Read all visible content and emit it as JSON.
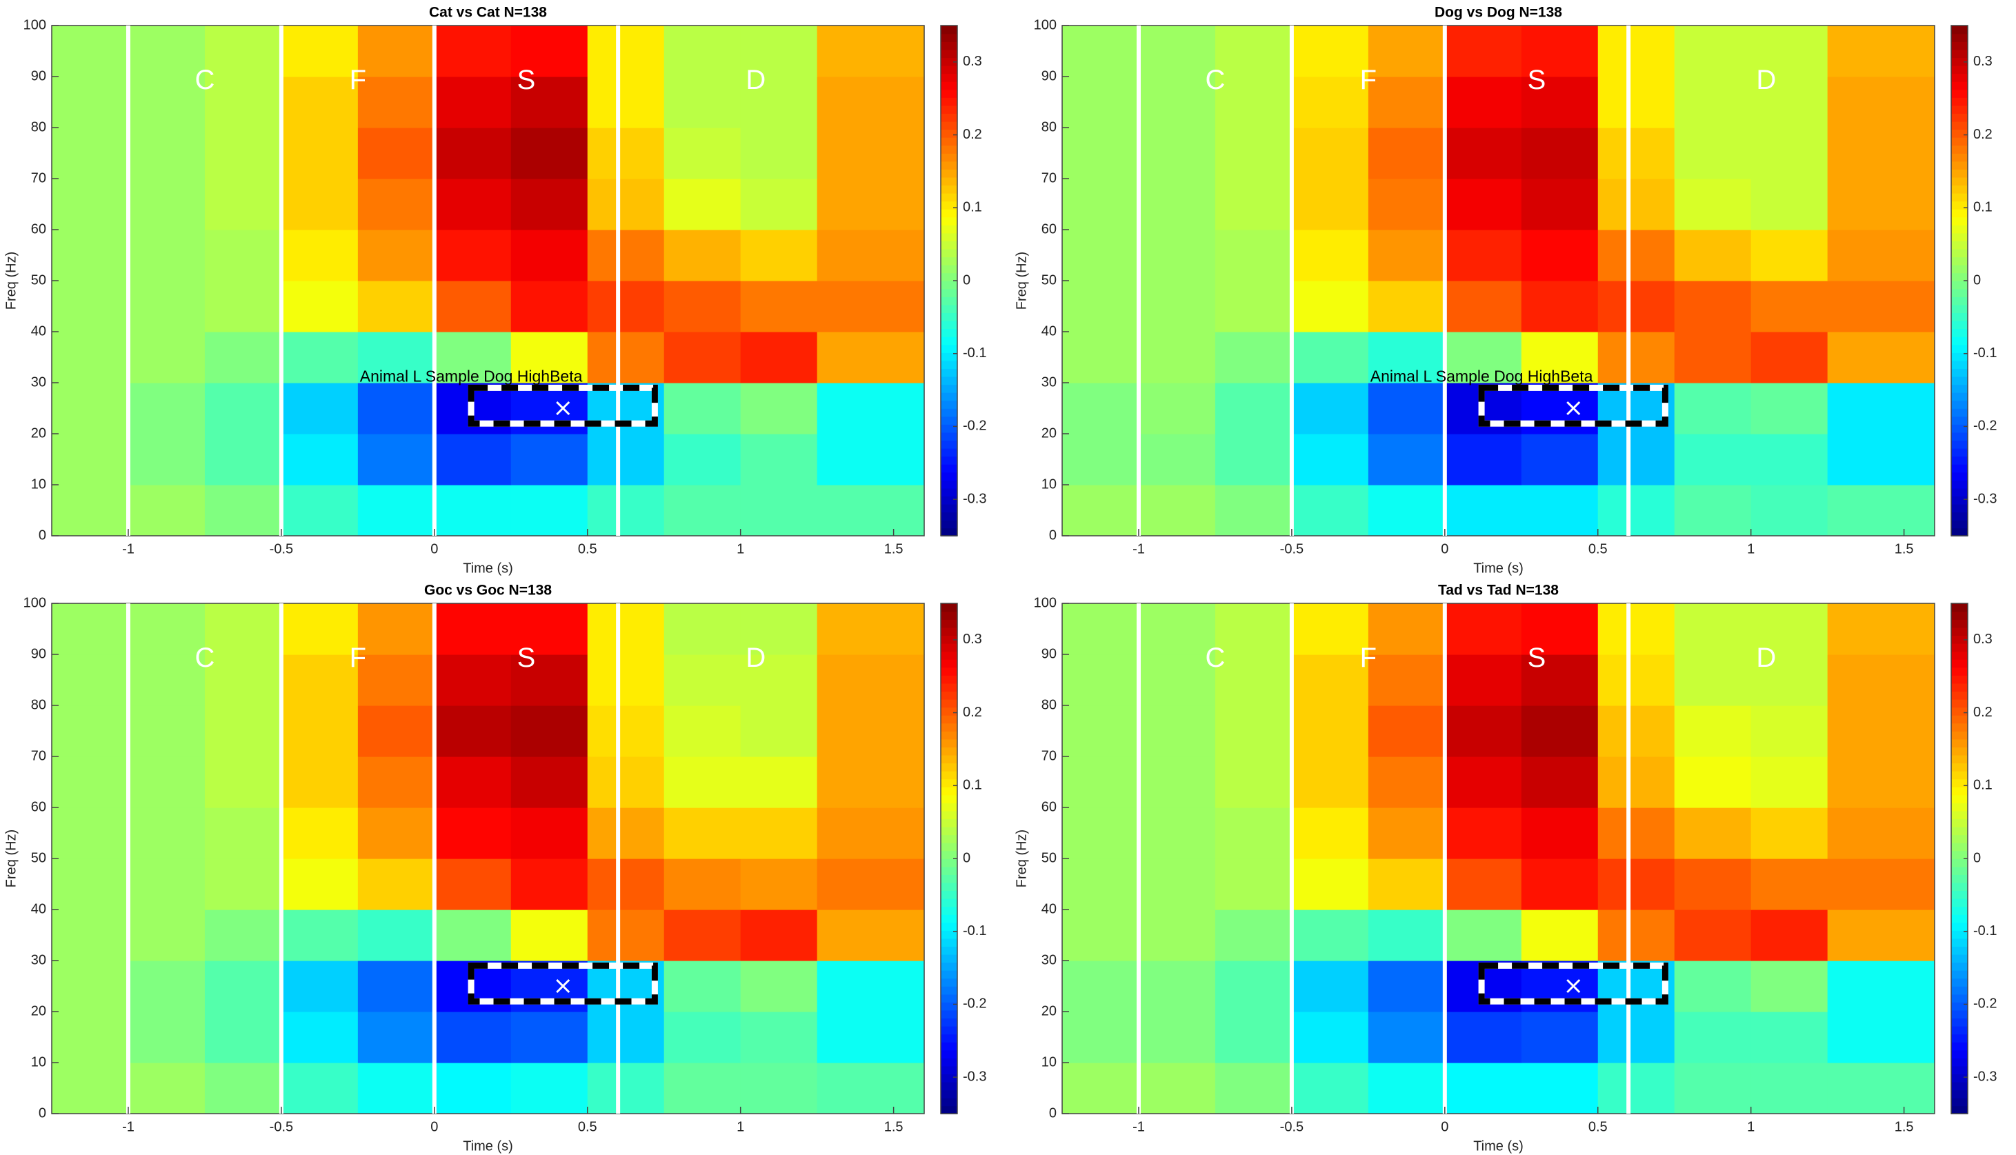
{
  "chart_data": [
    {
      "type": "heatmap",
      "title": "Cat vs Cat N=138",
      "xlabel": "Time (s)",
      "ylabel": "Freq (Hz)",
      "xlim": [
        -1.25,
        1.6
      ],
      "ylim": [
        0,
        100
      ],
      "xticks": [
        -1,
        -0.5,
        0,
        0.5,
        1,
        1.5
      ],
      "yticks": [
        0,
        10,
        20,
        30,
        40,
        50,
        60,
        70,
        80,
        90,
        100
      ],
      "colormap": "jet",
      "clim": [
        -0.35,
        0.35
      ],
      "cticks": [
        -0.3,
        -0.2,
        -0.1,
        0,
        0.1,
        0.2,
        0.3
      ],
      "x_edges": [
        -1.25,
        -1,
        -0.75,
        -0.5,
        -0.25,
        0,
        0.25,
        0.5,
        0.75,
        1,
        1.25,
        1.6
      ],
      "y_edges": [
        0,
        10,
        20,
        30,
        40,
        50,
        60,
        70,
        80,
        90,
        100
      ],
      "z": [
        [
          0.02,
          0.02,
          0,
          -0.05,
          -0.08,
          -0.08,
          -0.08,
          -0.05,
          -0.03,
          -0.03,
          -0.03
        ],
        [
          0.02,
          0,
          -0.03,
          -0.1,
          -0.18,
          -0.22,
          -0.2,
          -0.12,
          -0.05,
          -0.03,
          -0.08
        ],
        [
          0.02,
          0,
          -0.03,
          -0.12,
          -0.2,
          -0.27,
          -0.25,
          -0.12,
          -0.02,
          0,
          -0.08
        ],
        [
          0.02,
          0.02,
          0,
          -0.03,
          -0.05,
          0,
          0.08,
          0.18,
          0.22,
          0.24,
          0.15
        ],
        [
          0.02,
          0.02,
          0.03,
          0.08,
          0.12,
          0.2,
          0.25,
          0.22,
          0.2,
          0.18,
          0.18
        ],
        [
          0.02,
          0.02,
          0.03,
          0.1,
          0.16,
          0.25,
          0.27,
          0.18,
          0.14,
          0.12,
          0.16
        ],
        [
          0.02,
          0.02,
          0.04,
          0.12,
          0.18,
          0.28,
          0.3,
          0.13,
          0.07,
          0.05,
          0.15
        ],
        [
          0.02,
          0.02,
          0.04,
          0.12,
          0.2,
          0.3,
          0.32,
          0.12,
          0.05,
          0.04,
          0.15
        ],
        [
          0.02,
          0.02,
          0.04,
          0.12,
          0.18,
          0.28,
          0.3,
          0.1,
          0.04,
          0.04,
          0.15
        ],
        [
          0.02,
          0.02,
          0.04,
          0.1,
          0.16,
          0.25,
          0.26,
          0.1,
          0.04,
          0.04,
          0.14
        ]
      ],
      "vlines": [
        -1,
        -0.5,
        0,
        0.6
      ],
      "annotations": [
        {
          "text": "C",
          "x": -0.75,
          "y": 89
        },
        {
          "text": "F",
          "x": -0.25,
          "y": 89
        },
        {
          "text": "S",
          "x": 0.3,
          "y": 89
        },
        {
          "text": "D",
          "x": 1.05,
          "y": 89
        },
        {
          "text": "Animal L Sample Dog HighBeta",
          "x": 0.12,
          "y": 31
        }
      ],
      "box": {
        "x": [
          0.12,
          0.72
        ],
        "y": [
          22,
          29
        ]
      },
      "marker": {
        "x": 0.42,
        "y": 25
      }
    },
    {
      "type": "heatmap",
      "title": "Dog vs Dog N=138",
      "xlabel": "Time (s)",
      "ylabel": "Freq (Hz)",
      "xlim": [
        -1.25,
        1.6
      ],
      "ylim": [
        0,
        100
      ],
      "xticks": [
        -1,
        -0.5,
        0,
        0.5,
        1,
        1.5
      ],
      "yticks": [
        0,
        10,
        20,
        30,
        40,
        50,
        60,
        70,
        80,
        90,
        100
      ],
      "colormap": "jet",
      "clim": [
        -0.35,
        0.35
      ],
      "cticks": [
        -0.3,
        -0.2,
        -0.1,
        0,
        0.1,
        0.2,
        0.3
      ],
      "x_edges": [
        -1.25,
        -1,
        -0.75,
        -0.5,
        -0.25,
        0,
        0.25,
        0.5,
        0.75,
        1,
        1.25,
        1.6
      ],
      "y_edges": [
        0,
        10,
        20,
        30,
        40,
        50,
        60,
        70,
        80,
        90,
        100
      ],
      "z": [
        [
          0.02,
          0.02,
          0,
          -0.05,
          -0.08,
          -0.1,
          -0.1,
          -0.06,
          -0.03,
          -0.04,
          -0.03
        ],
        [
          0,
          0,
          -0.03,
          -0.1,
          -0.18,
          -0.24,
          -0.22,
          -0.13,
          -0.05,
          -0.05,
          -0.1
        ],
        [
          0,
          0.01,
          -0.03,
          -0.12,
          -0.2,
          -0.28,
          -0.26,
          -0.13,
          -0.03,
          -0.02,
          -0.1
        ],
        [
          0.02,
          0.02,
          0,
          -0.03,
          -0.06,
          0,
          0.08,
          0.17,
          0.2,
          0.22,
          0.15
        ],
        [
          0.02,
          0.02,
          0.03,
          0.08,
          0.12,
          0.2,
          0.24,
          0.22,
          0.2,
          0.18,
          0.18
        ],
        [
          0.02,
          0.02,
          0.03,
          0.1,
          0.16,
          0.24,
          0.26,
          0.18,
          0.13,
          0.11,
          0.16
        ],
        [
          0.02,
          0.02,
          0.04,
          0.12,
          0.18,
          0.27,
          0.29,
          0.13,
          0.06,
          0.05,
          0.15
        ],
        [
          0.02,
          0.02,
          0.04,
          0.12,
          0.19,
          0.29,
          0.3,
          0.12,
          0.05,
          0.05,
          0.15
        ],
        [
          0.02,
          0.02,
          0.04,
          0.11,
          0.17,
          0.27,
          0.28,
          0.1,
          0.05,
          0.05,
          0.15
        ],
        [
          0.02,
          0.02,
          0.04,
          0.1,
          0.15,
          0.24,
          0.25,
          0.1,
          0.05,
          0.05,
          0.14
        ]
      ],
      "vlines": [
        -1,
        -0.5,
        0,
        0.6
      ],
      "annotations": [
        {
          "text": "C",
          "x": -0.75,
          "y": 89
        },
        {
          "text": "F",
          "x": -0.25,
          "y": 89
        },
        {
          "text": "S",
          "x": 0.3,
          "y": 89
        },
        {
          "text": "D",
          "x": 1.05,
          "y": 89
        },
        {
          "text": "Animal L Sample Dog HighBeta",
          "x": 0.12,
          "y": 31
        }
      ],
      "box": {
        "x": [
          0.12,
          0.72
        ],
        "y": [
          22,
          29
        ]
      },
      "marker": {
        "x": 0.42,
        "y": 25
      }
    },
    {
      "type": "heatmap",
      "title": "Goc vs Goc N=138",
      "xlabel": "Time (s)",
      "ylabel": "Freq (Hz)",
      "xlim": [
        -1.25,
        1.6
      ],
      "ylim": [
        0,
        100
      ],
      "xticks": [
        -1,
        -0.5,
        0,
        0.5,
        1,
        1.5
      ],
      "yticks": [
        0,
        10,
        20,
        30,
        40,
        50,
        60,
        70,
        80,
        90,
        100
      ],
      "colormap": "jet",
      "clim": [
        -0.35,
        0.35
      ],
      "cticks": [
        -0.3,
        -0.2,
        -0.1,
        0,
        0.1,
        0.2,
        0.3
      ],
      "x_edges": [
        -1.25,
        -1,
        -0.75,
        -0.5,
        -0.25,
        0,
        0.25,
        0.5,
        0.75,
        1,
        1.25,
        1.6
      ],
      "y_edges": [
        0,
        10,
        20,
        30,
        40,
        50,
        60,
        70,
        80,
        90,
        100
      ],
      "z": [
        [
          0.02,
          0.02,
          0,
          -0.05,
          -0.08,
          -0.09,
          -0.08,
          -0.05,
          -0.02,
          -0.02,
          -0.03
        ],
        [
          0.02,
          0,
          -0.03,
          -0.1,
          -0.17,
          -0.21,
          -0.2,
          -0.12,
          -0.04,
          -0.03,
          -0.08
        ],
        [
          0.02,
          0,
          -0.03,
          -0.12,
          -0.19,
          -0.26,
          -0.24,
          -0.12,
          -0.02,
          0,
          -0.08
        ],
        [
          0.02,
          0.02,
          0,
          -0.03,
          -0.05,
          0,
          0.08,
          0.18,
          0.22,
          0.24,
          0.15
        ],
        [
          0.02,
          0.02,
          0.03,
          0.08,
          0.12,
          0.21,
          0.25,
          0.2,
          0.17,
          0.16,
          0.18
        ],
        [
          0.02,
          0.02,
          0.03,
          0.1,
          0.16,
          0.26,
          0.27,
          0.15,
          0.12,
          0.12,
          0.16
        ],
        [
          0.02,
          0.02,
          0.04,
          0.12,
          0.18,
          0.28,
          0.3,
          0.12,
          0.07,
          0.07,
          0.15
        ],
        [
          0.02,
          0.02,
          0.04,
          0.12,
          0.2,
          0.31,
          0.32,
          0.11,
          0.06,
          0.05,
          0.15
        ],
        [
          0.02,
          0.02,
          0.04,
          0.12,
          0.18,
          0.29,
          0.3,
          0.1,
          0.05,
          0.05,
          0.15
        ],
        [
          0.02,
          0.02,
          0.04,
          0.1,
          0.16,
          0.26,
          0.26,
          0.1,
          0.04,
          0.04,
          0.14
        ]
      ],
      "vlines": [
        -1,
        -0.5,
        0,
        0.6
      ],
      "annotations": [
        {
          "text": "C",
          "x": -0.75,
          "y": 89
        },
        {
          "text": "F",
          "x": -0.25,
          "y": 89
        },
        {
          "text": "S",
          "x": 0.3,
          "y": 89
        },
        {
          "text": "D",
          "x": 1.05,
          "y": 89
        }
      ],
      "box": {
        "x": [
          0.12,
          0.72
        ],
        "y": [
          22,
          29
        ]
      },
      "marker": {
        "x": 0.42,
        "y": 25
      }
    },
    {
      "type": "heatmap",
      "title": "Tad vs Tad N=138",
      "xlabel": "Time (s)",
      "ylabel": "Freq (Hz)",
      "xlim": [
        -1.25,
        1.6
      ],
      "ylim": [
        0,
        100
      ],
      "xticks": [
        -1,
        -0.5,
        0,
        0.5,
        1,
        1.5
      ],
      "yticks": [
        0,
        10,
        20,
        30,
        40,
        50,
        60,
        70,
        80,
        90,
        100
      ],
      "colormap": "jet",
      "clim": [
        -0.35,
        0.35
      ],
      "cticks": [
        -0.3,
        -0.2,
        -0.1,
        0,
        0.1,
        0.2,
        0.3
      ],
      "x_edges": [
        -1.25,
        -1,
        -0.75,
        -0.5,
        -0.25,
        0,
        0.25,
        0.5,
        0.75,
        1,
        1.25,
        1.6
      ],
      "y_edges": [
        0,
        10,
        20,
        30,
        40,
        50,
        60,
        70,
        80,
        90,
        100
      ],
      "z": [
        [
          0.02,
          0.02,
          0,
          -0.05,
          -0.08,
          -0.09,
          -0.09,
          -0.05,
          -0.03,
          -0.03,
          -0.03
        ],
        [
          0,
          0,
          -0.03,
          -0.1,
          -0.17,
          -0.22,
          -0.21,
          -0.12,
          -0.04,
          -0.04,
          -0.08
        ],
        [
          0,
          0,
          -0.03,
          -0.12,
          -0.19,
          -0.27,
          -0.25,
          -0.12,
          -0.02,
          0,
          -0.08
        ],
        [
          0.02,
          0.02,
          0,
          -0.03,
          -0.05,
          0,
          0.08,
          0.18,
          0.22,
          0.24,
          0.15
        ],
        [
          0.02,
          0.02,
          0.03,
          0.08,
          0.12,
          0.21,
          0.25,
          0.22,
          0.2,
          0.18,
          0.18
        ],
        [
          0.02,
          0.02,
          0.03,
          0.1,
          0.16,
          0.25,
          0.27,
          0.18,
          0.14,
          0.12,
          0.16
        ],
        [
          0.02,
          0.02,
          0.04,
          0.12,
          0.18,
          0.28,
          0.3,
          0.14,
          0.08,
          0.07,
          0.15
        ],
        [
          0.02,
          0.02,
          0.04,
          0.12,
          0.2,
          0.3,
          0.32,
          0.13,
          0.07,
          0.06,
          0.15
        ],
        [
          0.02,
          0.02,
          0.04,
          0.12,
          0.18,
          0.28,
          0.3,
          0.11,
          0.05,
          0.05,
          0.15
        ],
        [
          0.02,
          0.02,
          0.04,
          0.1,
          0.16,
          0.25,
          0.26,
          0.1,
          0.05,
          0.05,
          0.14
        ]
      ],
      "vlines": [
        -1,
        -0.5,
        0,
        0.6
      ],
      "annotations": [
        {
          "text": "C",
          "x": -0.75,
          "y": 89
        },
        {
          "text": "F",
          "x": -0.25,
          "y": 89
        },
        {
          "text": "S",
          "x": 0.3,
          "y": 89
        },
        {
          "text": "D",
          "x": 1.05,
          "y": 89
        }
      ],
      "box": {
        "x": [
          0.12,
          0.72
        ],
        "y": [
          22,
          29
        ]
      },
      "marker": {
        "x": 0.42,
        "y": 25
      }
    }
  ]
}
